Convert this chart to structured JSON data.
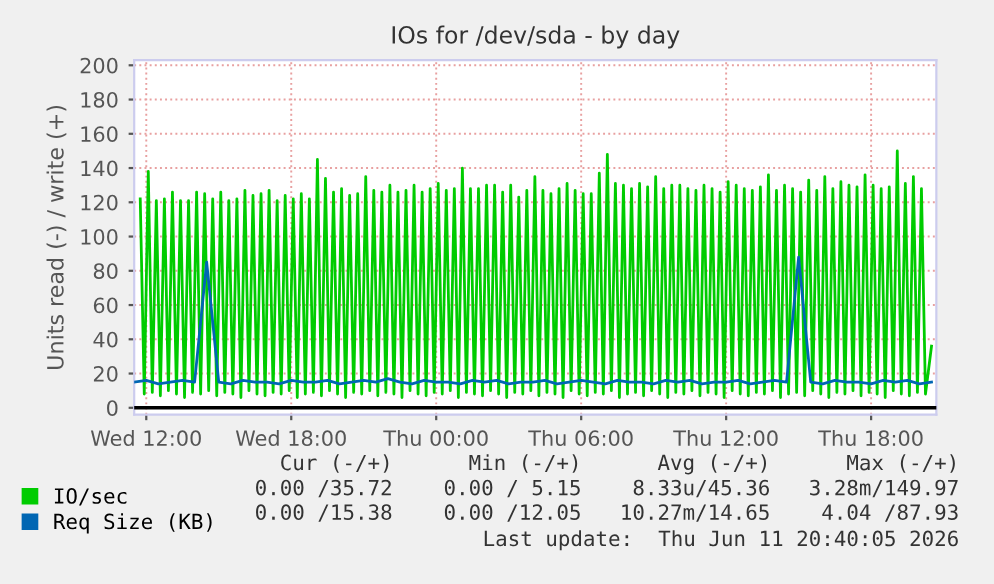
{
  "chart_data": {
    "type": "line",
    "title": "IOs for /dev/sda - by day",
    "ylabel": "Units read (-) / write (+)",
    "xlim": [
      "2026-06-10T11:30",
      "2026-06-11T20:42"
    ],
    "xticks": [
      {
        "value": "2026-06-10T12:00",
        "label": "Wed 12:00"
      },
      {
        "value": "2026-06-10T18:00",
        "label": "Wed 18:00"
      },
      {
        "value": "2026-06-11T00:00",
        "label": "Thu 00:00"
      },
      {
        "value": "2026-06-11T06:00",
        "label": "Thu 06:00"
      },
      {
        "value": "2026-06-11T12:00",
        "label": "Thu 12:00"
      },
      {
        "value": "2026-06-11T18:00",
        "label": "Thu 18:00"
      }
    ],
    "ylim": [
      -4,
      203
    ],
    "yticks": [
      0,
      20,
      40,
      60,
      80,
      100,
      120,
      140,
      160,
      180,
      200
    ],
    "grid": true,
    "legend": "bottom left",
    "marker": "none",
    "line_style": "solid",
    "ref_lines": [
      {
        "axis": "y",
        "value": 0,
        "color": "#000000"
      }
    ],
    "series": [
      {
        "name": "IO/sec",
        "color": "#00cc00",
        "x": [
          "2026-06-10T11:45",
          "2026-06-10T11:55",
          "2026-06-10T12:05",
          "2026-06-10T12:15",
          "2026-06-10T12:25",
          "2026-06-10T12:35",
          "2026-06-10T12:45",
          "2026-06-10T12:55",
          "2026-06-10T13:05",
          "2026-06-10T13:15",
          "2026-06-10T13:25",
          "2026-06-10T13:35",
          "2026-06-10T13:45",
          "2026-06-10T13:55",
          "2026-06-10T14:05",
          "2026-06-10T14:15",
          "2026-06-10T14:25",
          "2026-06-10T14:35",
          "2026-06-10T14:45",
          "2026-06-10T14:55",
          "2026-06-10T15:05",
          "2026-06-10T15:15",
          "2026-06-10T15:25",
          "2026-06-10T15:35",
          "2026-06-10T15:45",
          "2026-06-10T15:55",
          "2026-06-10T16:05",
          "2026-06-10T16:15",
          "2026-06-10T16:25",
          "2026-06-10T16:35",
          "2026-06-10T16:45",
          "2026-06-10T16:55",
          "2026-06-10T17:05",
          "2026-06-10T17:15",
          "2026-06-10T17:25",
          "2026-06-10T17:35",
          "2026-06-10T17:45",
          "2026-06-10T17:55",
          "2026-06-10T18:05",
          "2026-06-10T18:15",
          "2026-06-10T18:25",
          "2026-06-10T18:35",
          "2026-06-10T18:45",
          "2026-06-10T18:55",
          "2026-06-10T19:05",
          "2026-06-10T19:15",
          "2026-06-10T19:25",
          "2026-06-10T19:35",
          "2026-06-10T19:45",
          "2026-06-10T19:55",
          "2026-06-10T20:05",
          "2026-06-10T20:15",
          "2026-06-10T20:25",
          "2026-06-10T20:35",
          "2026-06-10T20:45",
          "2026-06-10T20:55",
          "2026-06-10T21:05",
          "2026-06-10T21:15",
          "2026-06-10T21:25",
          "2026-06-10T21:35",
          "2026-06-10T21:45",
          "2026-06-10T21:55",
          "2026-06-10T22:05",
          "2026-06-10T22:15",
          "2026-06-10T22:25",
          "2026-06-10T22:35",
          "2026-06-10T22:45",
          "2026-06-10T22:55",
          "2026-06-10T23:05",
          "2026-06-10T23:15",
          "2026-06-10T23:25",
          "2026-06-10T23:35",
          "2026-06-10T23:45",
          "2026-06-10T23:55",
          "2026-06-11T00:05",
          "2026-06-11T00:15",
          "2026-06-11T00:25",
          "2026-06-11T00:35",
          "2026-06-11T00:45",
          "2026-06-11T00:55",
          "2026-06-11T01:05",
          "2026-06-11T01:15",
          "2026-06-11T01:25",
          "2026-06-11T01:35",
          "2026-06-11T01:45",
          "2026-06-11T01:55",
          "2026-06-11T02:05",
          "2026-06-11T02:15",
          "2026-06-11T02:25",
          "2026-06-11T02:35",
          "2026-06-11T02:45",
          "2026-06-11T02:55",
          "2026-06-11T03:05",
          "2026-06-11T03:15",
          "2026-06-11T03:25",
          "2026-06-11T03:35",
          "2026-06-11T03:45",
          "2026-06-11T03:55",
          "2026-06-11T04:05",
          "2026-06-11T04:15",
          "2026-06-11T04:25",
          "2026-06-11T04:35",
          "2026-06-11T04:45",
          "2026-06-11T04:55",
          "2026-06-11T05:05",
          "2026-06-11T05:15",
          "2026-06-11T05:25",
          "2026-06-11T05:35",
          "2026-06-11T05:45",
          "2026-06-11T05:55",
          "2026-06-11T06:05",
          "2026-06-11T06:15",
          "2026-06-11T06:25",
          "2026-06-11T06:35",
          "2026-06-11T06:45",
          "2026-06-11T06:55",
          "2026-06-11T07:05",
          "2026-06-11T07:15",
          "2026-06-11T07:25",
          "2026-06-11T07:35",
          "2026-06-11T07:45",
          "2026-06-11T07:55",
          "2026-06-11T08:05",
          "2026-06-11T08:15",
          "2026-06-11T08:25",
          "2026-06-11T08:35",
          "2026-06-11T08:45",
          "2026-06-11T08:55",
          "2026-06-11T09:05",
          "2026-06-11T09:15",
          "2026-06-11T09:25",
          "2026-06-11T09:35",
          "2026-06-11T09:45",
          "2026-06-11T09:55",
          "2026-06-11T10:05",
          "2026-06-11T10:15",
          "2026-06-11T10:25",
          "2026-06-11T10:35",
          "2026-06-11T10:45",
          "2026-06-11T10:55",
          "2026-06-11T11:05",
          "2026-06-11T11:15",
          "2026-06-11T11:25",
          "2026-06-11T11:35",
          "2026-06-11T11:45",
          "2026-06-11T11:55",
          "2026-06-11T12:05",
          "2026-06-11T12:15",
          "2026-06-11T12:25",
          "2026-06-11T12:35",
          "2026-06-11T12:45",
          "2026-06-11T12:55",
          "2026-06-11T13:05",
          "2026-06-11T13:15",
          "2026-06-11T13:25",
          "2026-06-11T13:35",
          "2026-06-11T13:45",
          "2026-06-11T13:55",
          "2026-06-11T14:05",
          "2026-06-11T14:15",
          "2026-06-11T14:25",
          "2026-06-11T14:35",
          "2026-06-11T14:45",
          "2026-06-11T14:55",
          "2026-06-11T15:05",
          "2026-06-11T15:15",
          "2026-06-11T15:25",
          "2026-06-11T15:35",
          "2026-06-11T15:45",
          "2026-06-11T15:55",
          "2026-06-11T16:05",
          "2026-06-11T16:15",
          "2026-06-11T16:25",
          "2026-06-11T16:35",
          "2026-06-11T16:45",
          "2026-06-11T16:55",
          "2026-06-11T17:05",
          "2026-06-11T17:15",
          "2026-06-11T17:25",
          "2026-06-11T17:35",
          "2026-06-11T17:45",
          "2026-06-11T17:55",
          "2026-06-11T18:05",
          "2026-06-11T18:15",
          "2026-06-11T18:25",
          "2026-06-11T18:35",
          "2026-06-11T18:45",
          "2026-06-11T18:55",
          "2026-06-11T19:05",
          "2026-06-11T19:15",
          "2026-06-11T19:25",
          "2026-06-11T19:35",
          "2026-06-11T19:45",
          "2026-06-11T19:55",
          "2026-06-11T20:05",
          "2026-06-11T20:15",
          "2026-06-11T20:30"
        ],
        "values": [
          122,
          8,
          138,
          9,
          121,
          7,
          122,
          10,
          126,
          8,
          121,
          6,
          121,
          9,
          126,
          8,
          125,
          10,
          122,
          7,
          126,
          9,
          121,
          8,
          122,
          6,
          127,
          10,
          124,
          8,
          125,
          7,
          127,
          9,
          121,
          8,
          124,
          10,
          122,
          6,
          125,
          8,
          122,
          9,
          145,
          7,
          134,
          10,
          126,
          8,
          128,
          6,
          124,
          9,
          125,
          8,
          135,
          10,
          127,
          7,
          126,
          9,
          130,
          8,
          126,
          6,
          127,
          10,
          130,
          8,
          126,
          7,
          128,
          9,
          131,
          8,
          127,
          10,
          128,
          6,
          140,
          9,
          128,
          8,
          128,
          7,
          130,
          10,
          130,
          8,
          126,
          6,
          130,
          9,
          123,
          8,
          127,
          10,
          135,
          7,
          127,
          9,
          125,
          8,
          128,
          6,
          131,
          10,
          127,
          8,
          125,
          7,
          125,
          9,
          137,
          8,
          148,
          10,
          131,
          6,
          130,
          8,
          128,
          9,
          131,
          7,
          129,
          10,
          135,
          8,
          128,
          6,
          130,
          9,
          130,
          8,
          128,
          10,
          127,
          7,
          130,
          9,
          128,
          8,
          126,
          6,
          132,
          10,
          130,
          8,
          128,
          7,
          127,
          9,
          129,
          8,
          136,
          10,
          127,
          6,
          130,
          8,
          128,
          9,
          126,
          7,
          133,
          10,
          127,
          8,
          135,
          6,
          128,
          9,
          132,
          8,
          130,
          10,
          129,
          7,
          136,
          9,
          130,
          8,
          128,
          6,
          129,
          10,
          150,
          8,
          131,
          7,
          135,
          9,
          128,
          8,
          36
        ]
      },
      {
        "name": "Req Size (KB)",
        "color": "#0066b3",
        "x": [
          "2026-06-10T11:30",
          "2026-06-10T12:00",
          "2026-06-10T12:30",
          "2026-06-10T13:00",
          "2026-06-10T13:30",
          "2026-06-10T14:00",
          "2026-06-10T14:30",
          "2026-06-10T15:00",
          "2026-06-10T15:30",
          "2026-06-10T16:00",
          "2026-06-10T16:30",
          "2026-06-10T17:00",
          "2026-06-10T17:30",
          "2026-06-10T18:00",
          "2026-06-10T18:30",
          "2026-06-10T19:00",
          "2026-06-10T19:30",
          "2026-06-10T20:00",
          "2026-06-10T20:30",
          "2026-06-10T21:00",
          "2026-06-10T21:30",
          "2026-06-10T22:00",
          "2026-06-10T22:30",
          "2026-06-10T23:00",
          "2026-06-10T23:30",
          "2026-06-11T00:00",
          "2026-06-11T00:30",
          "2026-06-11T01:00",
          "2026-06-11T01:30",
          "2026-06-11T02:00",
          "2026-06-11T02:30",
          "2026-06-11T03:00",
          "2026-06-11T03:30",
          "2026-06-11T04:00",
          "2026-06-11T04:30",
          "2026-06-11T05:00",
          "2026-06-11T05:30",
          "2026-06-11T06:00",
          "2026-06-11T06:30",
          "2026-06-11T07:00",
          "2026-06-11T07:30",
          "2026-06-11T08:00",
          "2026-06-11T08:30",
          "2026-06-11T09:00",
          "2026-06-11T09:30",
          "2026-06-11T10:00",
          "2026-06-11T10:30",
          "2026-06-11T11:00",
          "2026-06-11T11:30",
          "2026-06-11T12:00",
          "2026-06-11T12:30",
          "2026-06-11T13:00",
          "2026-06-11T13:30",
          "2026-06-11T14:00",
          "2026-06-11T14:30",
          "2026-06-11T15:00",
          "2026-06-11T15:30",
          "2026-06-11T16:00",
          "2026-06-11T16:30",
          "2026-06-11T17:00",
          "2026-06-11T17:30",
          "2026-06-11T18:00",
          "2026-06-11T18:30",
          "2026-06-11T19:00",
          "2026-06-11T19:30",
          "2026-06-11T20:00",
          "2026-06-11T20:30"
        ],
        "values": [
          15,
          16,
          14,
          15,
          16,
          15,
          85,
          15,
          14,
          16,
          15,
          15,
          14,
          16,
          15,
          15,
          16,
          14,
          15,
          16,
          15,
          17,
          15,
          14,
          16,
          15,
          15,
          14,
          16,
          15,
          16,
          14,
          15,
          15,
          16,
          14,
          15,
          16,
          15,
          14,
          16,
          15,
          15,
          14,
          16,
          15,
          16,
          14,
          15,
          15,
          16,
          14,
          15,
          16,
          15,
          88,
          15,
          14,
          16,
          15,
          15,
          14,
          16,
          15,
          16,
          14,
          15
        ]
      }
    ],
    "annotations": [
      "Cur (-/+)",
      "Min (-/+)",
      "Avg (-/+)",
      "Max (-/+)",
      "0.00 /35.72",
      "0.00 / 5.15",
      "8.33u/45.36",
      "3.28m/149.97",
      "0.00 /15.38",
      "0.00 /12.05",
      "10.27m/14.65",
      "4.04 /87.93",
      "Last update:  Thu Jun 11 20:40:05 2026"
    ]
  }
}
